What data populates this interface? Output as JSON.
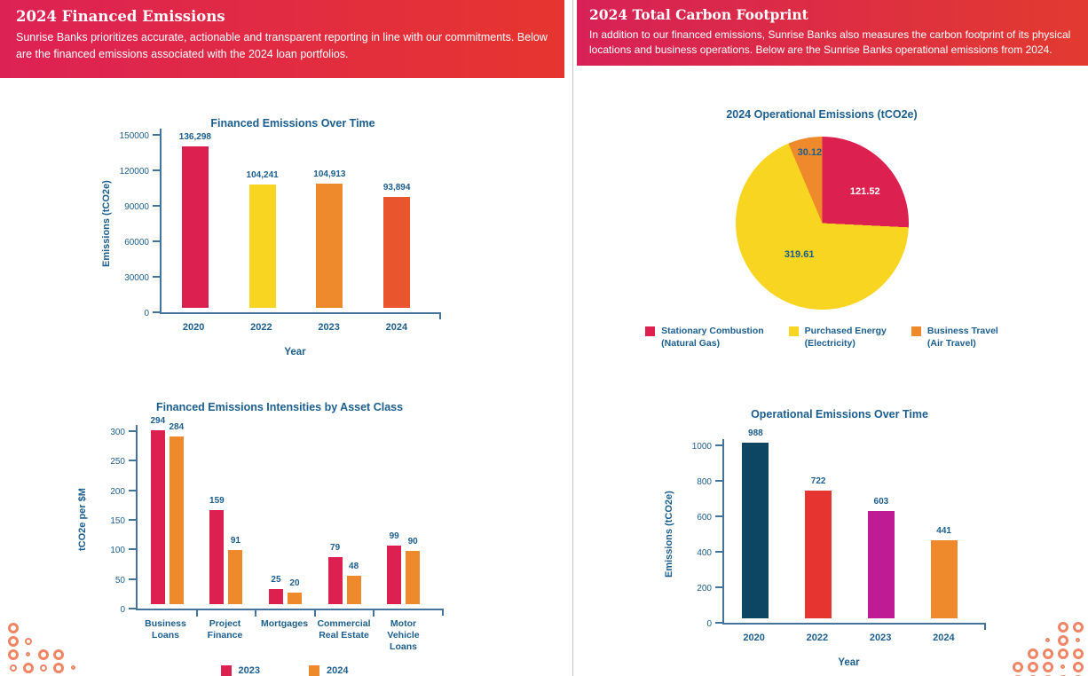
{
  "left_page": {
    "header": {
      "title": "2024 Financed Emissions",
      "subtitle": "Sunrise Banks prioritizes accurate, actionable and transparent reporting in line with our commitments. Below are the financed emissions associated with the 2024 loan portfolios."
    }
  },
  "right_page": {
    "header": {
      "title": "2024 Total Carbon Footprint",
      "subtitle": "In addition to our financed emissions, Sunrise Banks also measures the carbon footprint of its physical locations and business operations. Below are the Sunrise Banks operational emissions from 2024."
    }
  },
  "colors": {
    "header_gradient_start": "#DD2155",
    "header_gradient_end": "#E6352F",
    "axis": "#44739C",
    "chart_text": "#1B5E8E",
    "crimson": "#DC2050",
    "yellow": "#F7D521",
    "orange": "#EF8A2C",
    "red_orange": "#E9562E",
    "navy": "#0D4663",
    "red": "#E63530",
    "magenta": "#BE1B95",
    "decor_dot": "#F08565"
  },
  "chart_data": [
    {
      "type": "bar",
      "title": "Financed Emissions Over Time",
      "xlabel": "Year",
      "ylabel": "Emissions (tCO2e)",
      "categories": [
        "2020",
        "2022",
        "2023",
        "2024"
      ],
      "values": [
        136298,
        104241,
        104913,
        93894
      ],
      "value_labels": [
        "136,298",
        "104,241",
        "104,913",
        "93,894"
      ],
      "bar_colors": [
        "#DC2050",
        "#F7D521",
        "#EF8A2C",
        "#E9562E"
      ],
      "ylim": [
        0,
        150000
      ],
      "yticks": [
        0,
        30000,
        60000,
        90000,
        120000,
        150000
      ],
      "grid": false,
      "legend_position": "none"
    },
    {
      "type": "bar",
      "title": "Financed Emissions Intensities by Asset Class",
      "xlabel": "",
      "ylabel": "tCO2e per $M",
      "categories": [
        "Business Loans",
        "Project Finance",
        "Mortgages",
        "Commercial Real Estate",
        "Motor Vehicle Loans"
      ],
      "series": [
        {
          "name": "2023",
          "color": "#DC2050",
          "values": [
            294,
            159,
            25,
            79,
            99
          ]
        },
        {
          "name": "2024",
          "color": "#EF8A2C",
          "values": [
            284,
            91,
            20,
            48,
            90
          ]
        }
      ],
      "ylim": [
        0,
        300
      ],
      "yticks": [
        0,
        50,
        100,
        150,
        200,
        250,
        300
      ],
      "grid": false,
      "legend_position": "bottom"
    },
    {
      "type": "pie",
      "title": "2024 Operational Emissions (tCO2e)",
      "slices": [
        {
          "label": "Stationary Combustion",
          "sublabel": "(Natural Gas)",
          "value": 121.52,
          "color": "#DC2050"
        },
        {
          "label": "Purchased Energy",
          "sublabel": "(Electricity)",
          "value": 319.61,
          "color": "#F7D521"
        },
        {
          "label": "Business Travel",
          "sublabel": "(Air Travel)",
          "value": 30.12,
          "color": "#EF8A2C"
        }
      ],
      "legend_position": "bottom"
    },
    {
      "type": "bar",
      "title": "Operational Emissions Over Time",
      "xlabel": "Year",
      "ylabel": "Emissions (tCO2e)",
      "categories": [
        "2020",
        "2022",
        "2023",
        "2024"
      ],
      "values": [
        988,
        722,
        603,
        441
      ],
      "value_labels": [
        "988",
        "722",
        "603",
        "441"
      ],
      "bar_colors": [
        "#0D4663",
        "#E63530",
        "#BE1B95",
        "#EF8A2C"
      ],
      "ylim": [
        0,
        1000
      ],
      "yticks": [
        0,
        200,
        400,
        600,
        800,
        1000
      ],
      "grid": false,
      "legend_position": "none"
    }
  ],
  "decor": {
    "left_dots": [
      [
        "m",
        "",
        "",
        "",
        ""
      ],
      [
        "m",
        "s",
        "",
        "",
        ""
      ],
      [
        "m",
        "t",
        "m",
        "m",
        ""
      ],
      [
        "s",
        "m",
        "s",
        "m",
        "t"
      ]
    ],
    "right_dots": [
      [
        "",
        "",
        "",
        "m",
        "m",
        "m"
      ],
      [
        "",
        "",
        "t",
        "m",
        "t",
        "m"
      ],
      [
        "",
        "m",
        "m",
        "m",
        "m",
        "m"
      ],
      [
        "m",
        "m",
        "m",
        "t",
        "m",
        "m"
      ],
      [
        "m",
        "m",
        "m",
        "m",
        "m",
        "m"
      ]
    ]
  }
}
